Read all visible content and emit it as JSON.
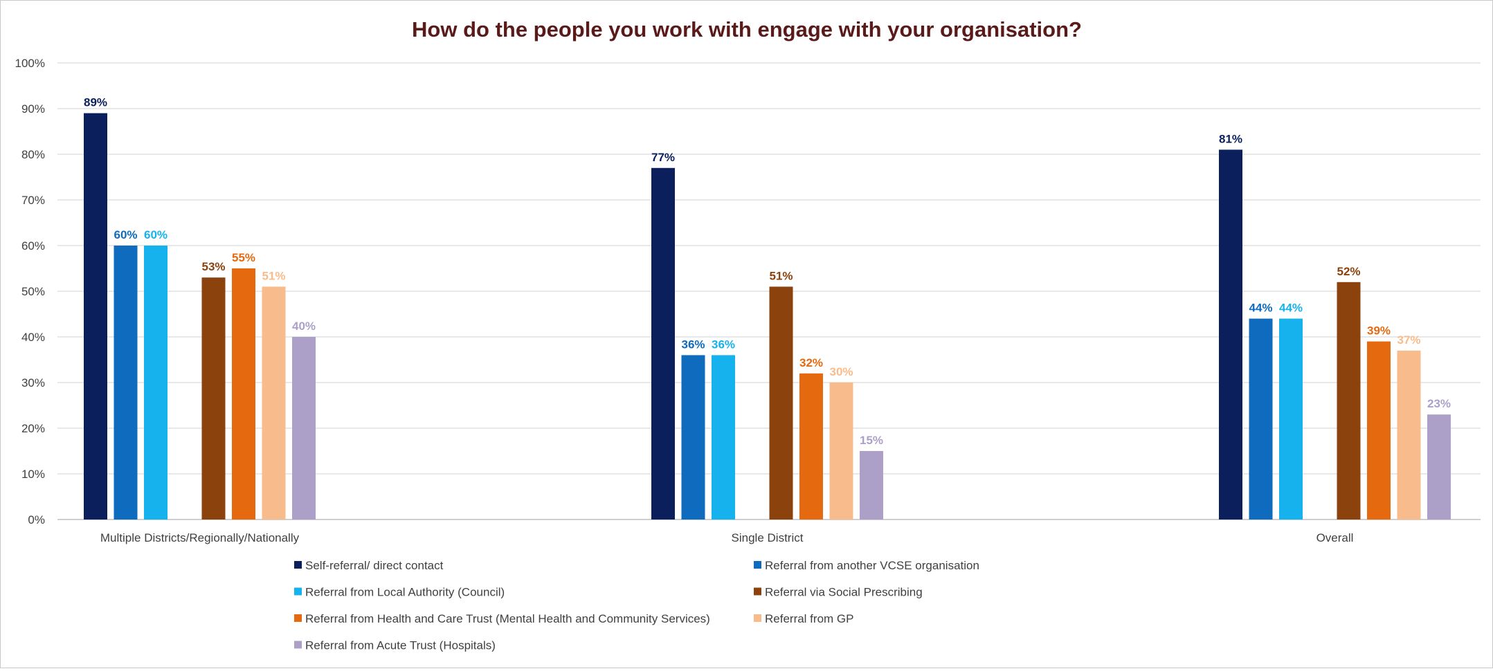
{
  "chart_data": {
    "type": "bar",
    "title": "How do the people you work with engage with your organisation?",
    "xlabel": "",
    "ylabel": "",
    "ylim": [
      0,
      100
    ],
    "y_ticks": [
      "0%",
      "10%",
      "20%",
      "30%",
      "40%",
      "50%",
      "60%",
      "70%",
      "80%",
      "90%",
      "100%"
    ],
    "grid": true,
    "legend_position": "bottom",
    "categories": [
      "Multiple Districts/Regionally/Nationally",
      "Single District",
      "Overall"
    ],
    "series": [
      {
        "name": "Self-referral/ direct contact",
        "color": "#0b1f5c",
        "values": [
          89,
          77,
          81
        ],
        "labels": [
          "89%",
          "77%",
          "81%"
        ]
      },
      {
        "name": "Referral from another VCSE organisation",
        "color": "#0e6bbd",
        "values": [
          60,
          36,
          44
        ],
        "labels": [
          "60%",
          "36%",
          "44%"
        ]
      },
      {
        "name": "Referral from Local Authority (Council)",
        "color": "#16b2ee",
        "values": [
          60,
          36,
          44
        ],
        "labels": [
          "60%",
          "36%",
          "44%"
        ]
      },
      {
        "name": "Referral via Social Prescribing",
        "color": "#8c420d",
        "values": [
          53,
          51,
          52
        ],
        "labels": [
          "53%",
          "51%",
          "52%"
        ]
      },
      {
        "name": "Referral from Health and Care Trust (Mental Health and Community Services)",
        "color": "#e4690f",
        "values": [
          55,
          32,
          39
        ],
        "labels": [
          "55%",
          "32%",
          "39%"
        ]
      },
      {
        "name": "Referral from GP",
        "color": "#f8bc8c",
        "values": [
          51,
          30,
          37
        ],
        "labels": [
          "51%",
          "30%",
          "37%"
        ]
      },
      {
        "name": "Referral from Acute Trust (Hospitals)",
        "color": "#ada0c8",
        "values": [
          40,
          15,
          23
        ],
        "labels": [
          "40%",
          "15%",
          "23%"
        ]
      }
    ]
  }
}
